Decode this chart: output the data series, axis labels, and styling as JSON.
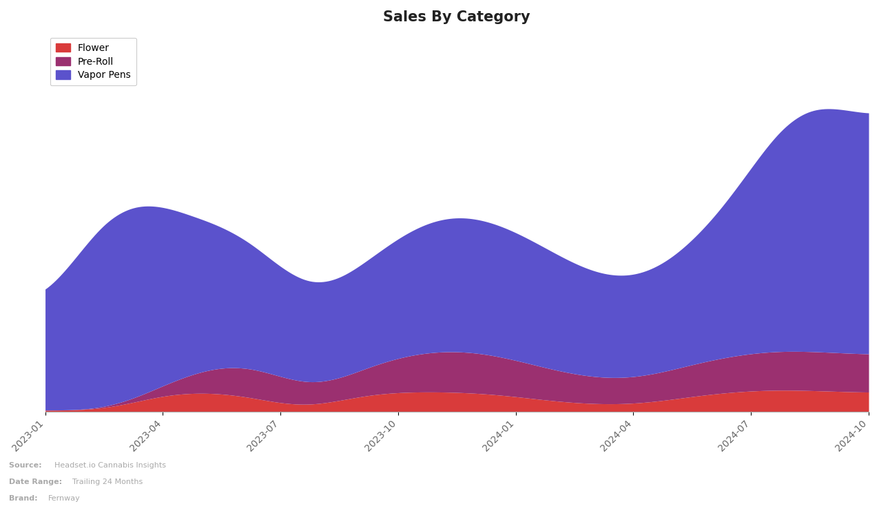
{
  "title": "Sales By Category",
  "categories": [
    "Flower",
    "Pre-Roll",
    "Vapor Pens"
  ],
  "colors": [
    "#d93b3b",
    "#9b3070",
    "#5b52cc"
  ],
  "x_labels": [
    "2023-01",
    "2023-04",
    "2023-07",
    "2023-10",
    "2024-01",
    "2024-04",
    "2024-07",
    "2024-10"
  ],
  "background_color": "#ffffff",
  "footer_brand": "Fernway",
  "footer_date_range": "Trailing 24 Months",
  "footer_source": "Headset.io Cannabis Insights",
  "flower": [
    0.005,
    0.005,
    0.005,
    0.03,
    0.065,
    0.07,
    0.068,
    0.055,
    0.025,
    0.01,
    0.04,
    0.065,
    0.07,
    0.072,
    0.07,
    0.065,
    0.055,
    0.04,
    0.03,
    0.025,
    0.025,
    0.038,
    0.055,
    0.068,
    0.075,
    0.08,
    0.075,
    0.072,
    0.068
  ],
  "preroll": [
    0.0,
    0.0,
    0.0,
    0.01,
    0.03,
    0.07,
    0.1,
    0.115,
    0.1,
    0.065,
    0.07,
    0.1,
    0.125,
    0.145,
    0.15,
    0.145,
    0.13,
    0.115,
    0.1,
    0.09,
    0.09,
    0.1,
    0.115,
    0.125,
    0.135,
    0.14,
    0.14,
    0.138,
    0.135
  ],
  "vaporpens": [
    0.35,
    0.55,
    0.7,
    0.72,
    0.65,
    0.55,
    0.5,
    0.45,
    0.38,
    0.34,
    0.34,
    0.38,
    0.43,
    0.47,
    0.49,
    0.48,
    0.46,
    0.43,
    0.39,
    0.36,
    0.35,
    0.37,
    0.43,
    0.52,
    0.65,
    0.82,
    0.9,
    0.87,
    0.85
  ],
  "n_points": 29,
  "ylim_max": 1.35,
  "figsize": [
    12.76,
    7.48
  ],
  "dpi": 100
}
